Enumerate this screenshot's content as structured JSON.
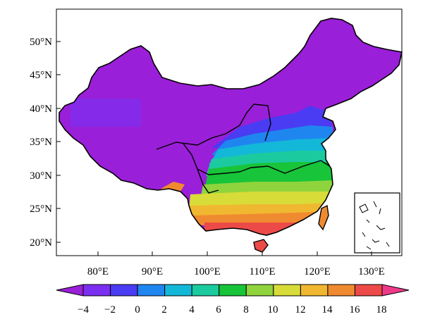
{
  "map": {
    "lat_ticks": [
      "20°N",
      "25°N",
      "30°N",
      "35°N",
      "40°N",
      "45°N",
      "50°N"
    ],
    "lon_ticks": [
      "80°E",
      "90°E",
      "100°E",
      "110°E",
      "120°E",
      "130°E"
    ],
    "inset": "South China Sea islands"
  },
  "colorbar": {
    "levels": [
      "−4",
      "−2",
      "0",
      "2",
      "4",
      "6",
      "8",
      "10",
      "12",
      "14",
      "16",
      "18"
    ],
    "colors": [
      "#7b2ff0",
      "#4a3cf2",
      "#1f86f0",
      "#13b8d8",
      "#1ccaa0",
      "#18c43a",
      "#8fd43c",
      "#d8dc38",
      "#f0b830",
      "#f08a30",
      "#ec4a48"
    ],
    "low_color": "#9a1fd8",
    "high_color": "#ee3a8a"
  },
  "colors": {
    "outside": "#9a1fd8",
    "land_default": "#9a1fd8"
  }
}
